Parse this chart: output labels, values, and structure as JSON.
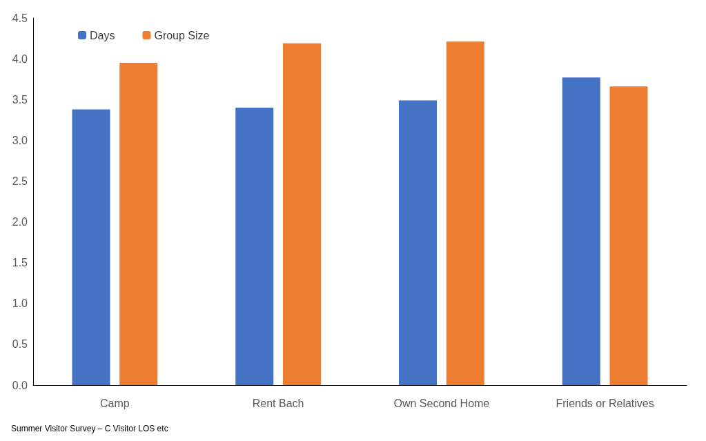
{
  "chart_data": {
    "type": "bar",
    "categories": [
      "Camp",
      "Rent Bach",
      "Own Second Home",
      "Friends or Relatives"
    ],
    "series": [
      {
        "name": "Days",
        "color": "#4472c4",
        "values": [
          3.38,
          3.4,
          3.49,
          3.77
        ]
      },
      {
        "name": "Group Size",
        "color": "#ed7d31",
        "values": [
          3.95,
          4.19,
          4.21,
          3.66
        ]
      }
    ],
    "ylim": [
      0,
      4.5
    ],
    "yticks": [
      {
        "value": 0,
        "label": "0.0"
      },
      0.5,
      {
        "value": 1,
        "label": "1.0"
      },
      1.5,
      {
        "value": 2,
        "label": "2.0"
      },
      2.5,
      {
        "value": 3,
        "label": "3.0"
      },
      3.5,
      {
        "value": 4,
        "label": "4.0"
      },
      4.5
    ],
    "grid": false,
    "legend": "top left",
    "annotations": [
      "Summer Visitor Survey – C Visitor LOS etc"
    ]
  }
}
